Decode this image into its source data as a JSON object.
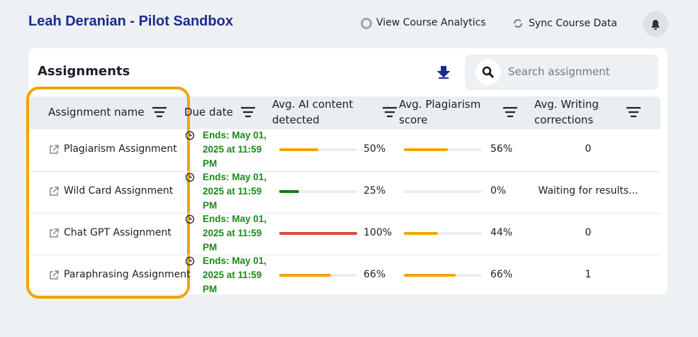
{
  "header": {
    "title": "Leah Deranian - Pilot Sandbox",
    "actions": [
      {
        "label": "View Course Analytics"
      },
      {
        "label": "Sync Course Data"
      }
    ]
  },
  "card": {
    "title": "Assignments",
    "search_placeholder": "Search assignment",
    "columns": [
      "Assignment name",
      "Due date",
      "Avg. AI content detected",
      "Avg. Plagiarism score",
      "Avg. Writing corrections"
    ],
    "rows": [
      {
        "name": "Plagiarism Assignment",
        "due": "Ends: May 01, 2025 at 11:59 PM",
        "ai": {
          "value": 50,
          "label": "50%",
          "color": "#f0a500"
        },
        "plagiarism": {
          "value": 56,
          "label": "56%",
          "color": "#f0a500"
        },
        "writing": "0"
      },
      {
        "name": "Wild Card Assignment",
        "due": "Ends: May 01, 2025 at 11:59 PM",
        "ai": {
          "value": 25,
          "label": "25%",
          "color": "#137a13"
        },
        "plagiarism": {
          "value": 0,
          "label": "0%",
          "color": "#f0a500"
        },
        "writing": "Waiting for results..."
      },
      {
        "name": "Chat GPT Assignment",
        "due": "Ends: May 01, 2025 at 11:59 PM",
        "ai": {
          "value": 100,
          "label": "100%",
          "color": "#e2483a"
        },
        "plagiarism": {
          "value": 44,
          "label": "44%",
          "color": "#f0a500"
        },
        "writing": "0"
      },
      {
        "name": "Paraphrasing Assignment",
        "due": "Ends: May 01, 2025 at 11:59 PM",
        "ai": {
          "value": 66,
          "label": "66%",
          "color": "#f0a500"
        },
        "plagiarism": {
          "value": 66,
          "label": "66%",
          "color": "#f0a500"
        },
        "writing": "1"
      }
    ]
  }
}
